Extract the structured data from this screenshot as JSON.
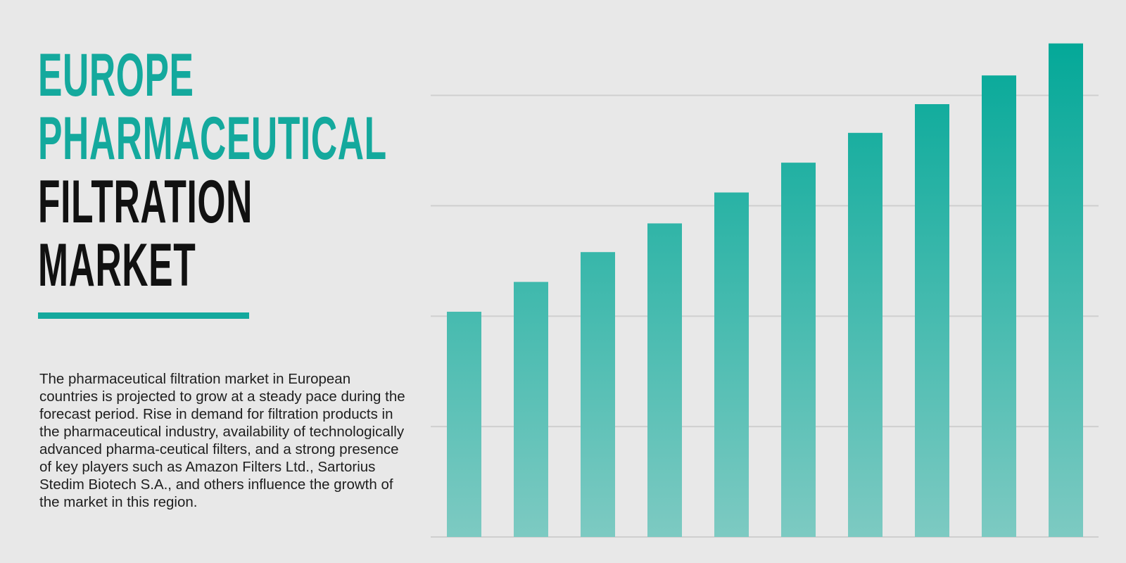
{
  "chart_data": {
    "type": "bar",
    "title": [
      {
        "text": "EUROPE PHARMACEUTICAL",
        "color": "#14a99d"
      },
      {
        "text": "FILTRATION MARKET",
        "color": "#111111"
      }
    ],
    "description": "The pharmaceutical filtration market in European countries is projected to grow at a steady pace during the forecast period. Rise in demand for filtration products in the pharmaceutical industry, availability of technologically advanced pharma-ceutical filters, and a strong presence of key players such as Amazon Filters Ltd., Sartorius Stedim Biotech S.A., and others influence the growth of the market in this region.",
    "categories": [
      null,
      null,
      null,
      null,
      null,
      null,
      null,
      null,
      null,
      null
    ],
    "values": [
      2.04,
      2.31,
      2.58,
      2.84,
      3.12,
      3.39,
      3.66,
      3.92,
      4.18,
      4.47
    ],
    "color": "#03a898",
    "ylim": [
      0,
      4.5
    ],
    "yticks": [
      0,
      1,
      2,
      3,
      4
    ],
    "grid": true
  }
}
